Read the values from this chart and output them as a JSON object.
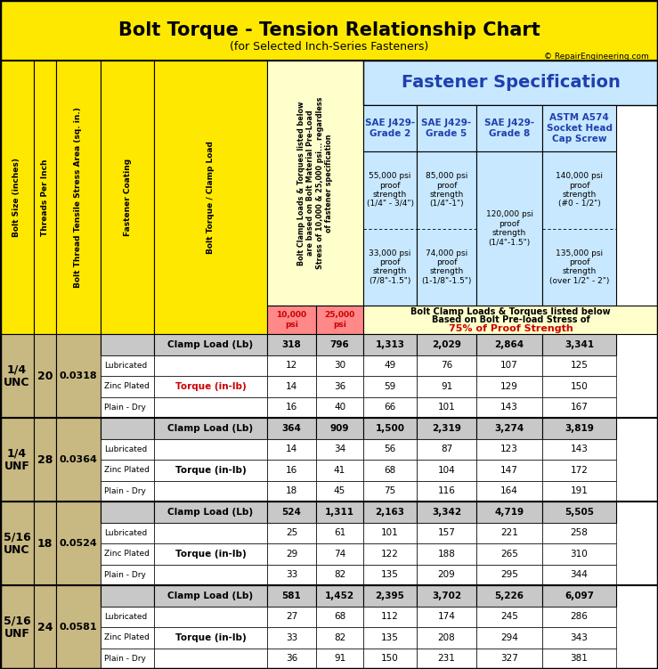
{
  "title": "Bolt Torque - Tension Relationship Chart",
  "subtitle": "(for Selected Inch-Series Fasteners)",
  "copyright": "© RepairEngineering.com",
  "yellow": "#FFE800",
  "light_yellow": "#FFFFCC",
  "light_blue": "#C8E8FF",
  "white": "#FFFFFF",
  "tan": "#C8B882",
  "gray_clamp": "#C8C8C8",
  "dark_blue": "#1E40AF",
  "black": "#000000",
  "red": "#CC0000",
  "psi_red_bg": "#FF8888",
  "groups": [
    {
      "bolt_size": "1/4\nUNC",
      "tpi": "20",
      "area": "0.0318",
      "clamp": {
        "v10k": "318",
        "v25k": "796",
        "g2": "1,313",
        "g5": "2,029",
        "g8": "2,864",
        "astm": "3,341"
      },
      "torque_label_red": true,
      "rows": [
        {
          "coating": "Lubricated",
          "v10k": "12",
          "v25k": "30",
          "g2": "49",
          "g5": "76",
          "g8": "107",
          "astm": "125"
        },
        {
          "coating": "Zinc Plated",
          "v10k": "14",
          "v25k": "36",
          "g2": "59",
          "g5": "91",
          "g8": "129",
          "astm": "150"
        },
        {
          "coating": "Plain - Dry",
          "v10k": "16",
          "v25k": "40",
          "g2": "66",
          "g5": "101",
          "g8": "143",
          "astm": "167"
        }
      ]
    },
    {
      "bolt_size": "1/4\nUNF",
      "tpi": "28",
      "area": "0.0364",
      "clamp": {
        "v10k": "364",
        "v25k": "909",
        "g2": "1,500",
        "g5": "2,319",
        "g8": "3,274",
        "astm": "3,819"
      },
      "torque_label_red": false,
      "rows": [
        {
          "coating": "Lubricated",
          "v10k": "14",
          "v25k": "34",
          "g2": "56",
          "g5": "87",
          "g8": "123",
          "astm": "143"
        },
        {
          "coating": "Zinc Plated",
          "v10k": "16",
          "v25k": "41",
          "g2": "68",
          "g5": "104",
          "g8": "147",
          "astm": "172"
        },
        {
          "coating": "Plain - Dry",
          "v10k": "18",
          "v25k": "45",
          "g2": "75",
          "g5": "116",
          "g8": "164",
          "astm": "191"
        }
      ]
    },
    {
      "bolt_size": "5/16\nUNC",
      "tpi": "18",
      "area": "0.0524",
      "clamp": {
        "v10k": "524",
        "v25k": "1,311",
        "g2": "2,163",
        "g5": "3,342",
        "g8": "4,719",
        "astm": "5,505"
      },
      "torque_label_red": false,
      "rows": [
        {
          "coating": "Lubricated",
          "v10k": "25",
          "v25k": "61",
          "g2": "101",
          "g5": "157",
          "g8": "221",
          "astm": "258"
        },
        {
          "coating": "Zinc Plated",
          "v10k": "29",
          "v25k": "74",
          "g2": "122",
          "g5": "188",
          "g8": "265",
          "astm": "310"
        },
        {
          "coating": "Plain - Dry",
          "v10k": "33",
          "v25k": "82",
          "g2": "135",
          "g5": "209",
          "g8": "295",
          "astm": "344"
        }
      ]
    },
    {
      "bolt_size": "5/16\nUNF",
      "tpi": "24",
      "area": "0.0581",
      "clamp": {
        "v10k": "581",
        "v25k": "1,452",
        "g2": "2,395",
        "g5": "3,702",
        "g8": "5,226",
        "astm": "6,097"
      },
      "torque_label_red": false,
      "rows": [
        {
          "coating": "Lubricated",
          "v10k": "27",
          "v25k": "68",
          "g2": "112",
          "g5": "174",
          "g8": "245",
          "astm": "286"
        },
        {
          "coating": "Zinc Plated",
          "v10k": "33",
          "v25k": "82",
          "g2": "135",
          "g5": "208",
          "g8": "294",
          "astm": "343"
        },
        {
          "coating": "Plain - Dry",
          "v10k": "36",
          "v25k": "91",
          "g2": "150",
          "g5": "231",
          "g8": "327",
          "astm": "381"
        }
      ]
    }
  ],
  "fastener_spec_header": "Fastener Specification",
  "grade_cols": [
    {
      "label": "SAE J429-\nGrade 2",
      "spec1": "55,000 psi\nproof\nstrength\n(1/4\" - 3/4\")",
      "spec2": "33,000 psi\nproof\nstrength\n(7/8\"-1.5\")"
    },
    {
      "label": "SAE J429-\nGrade 5",
      "spec1": "85,000 psi\nproof\nstrength\n(1/4\"-1\")",
      "spec2": "74,000 psi\nproof\nstrength\n(1-1/8\"-1.5\")"
    },
    {
      "label": "SAE J429-\nGrade 8",
      "spec1": "120,000 psi\nproof\nstrength\n(1/4\"-1.5\")",
      "spec2": ""
    },
    {
      "label": "ASTM A574\nSocket Head\nCap Screw",
      "spec1": "140,000 psi\nproof\nstrength\n(#0 - 1/2\")",
      "spec2": "135,000 psi\nproof\nstrength\n(over 1/2\" - 2\")"
    }
  ],
  "note_rotated": "Bolt Clamp Loads & Torques listed below\nare based on Bolt Material Pre-Load\nStress of 10,000 & 25,000 psi... regardless\nof fastener specification",
  "note_right_line1": "Bolt Clamp Loads & Torques listed below",
  "note_right_line2": "Based on Bolt Pre-load Stress of",
  "note_right_line3": "75% of Proof Strength"
}
